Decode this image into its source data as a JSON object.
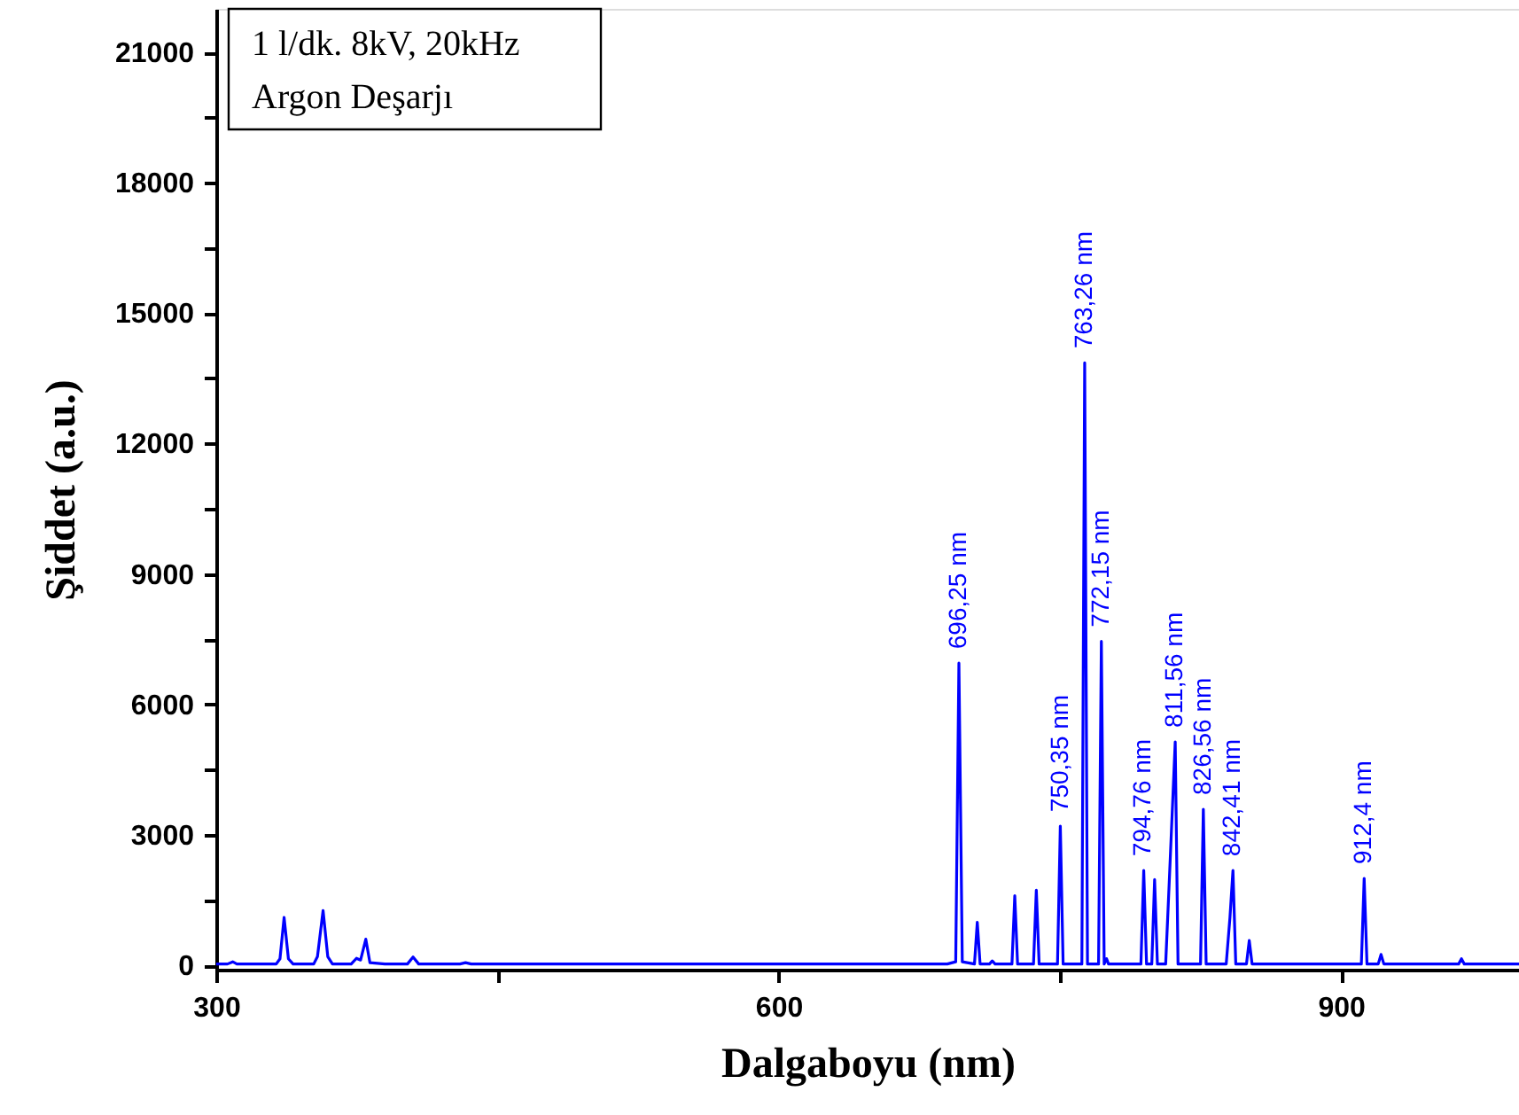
{
  "chart_data": {
    "type": "line",
    "xlabel": "Dalgaboyu (nm)",
    "ylabel": "Şiddet (a.u.)",
    "xlim": [
      300,
      995
    ],
    "ylim": [
      -100,
      22000
    ],
    "xticks": [
      300,
      {
        "value": 450,
        "label": null
      },
      600,
      {
        "value": 750,
        "label": null
      },
      900
    ],
    "yticks": [
      0,
      {
        "value": 1500,
        "label": null
      },
      3000,
      {
        "value": 4500,
        "label": null
      },
      6000,
      {
        "value": 7500,
        "label": null
      },
      9000,
      {
        "value": 10500,
        "label": null
      },
      12000,
      {
        "value": 13500,
        "label": null
      },
      15000,
      {
        "value": 16500,
        "label": null
      },
      18000,
      {
        "value": 19500,
        "label": null
      },
      21000
    ],
    "grid": false,
    "marker": "none",
    "line_style": "solid",
    "series": [
      {
        "color": "#0000ff",
        "x": [
          300,
          306,
          308.8,
          311,
          320,
          332,
          334,
          336.2,
          338.5,
          341,
          352,
          354,
          357,
          359.5,
          362,
          372,
          374.8,
          377,
          379.8,
          382,
          390,
          402,
          405,
          408,
          430,
          433,
          436,
          500,
          600,
          690,
          694.5,
          696.2,
          698,
          704.5,
          706,
          707.5,
          712.5,
          714,
          715.5,
          724.5,
          726,
          727.5,
          736,
          737.5,
          739,
          748.8,
          750.3,
          751.8,
          761.8,
          763.3,
          764.8,
          770.7,
          772.2,
          773.7,
          775,
          776,
          793.3,
          794.8,
          796.3,
          799.1,
          800.6,
          802.1,
          806.5,
          808.5,
          811.6,
          813.1,
          825.1,
          826.6,
          828.1,
          838.8,
          840.8,
          842.4,
          843.9,
          849.6,
          851.1,
          852.6,
          900,
          910.9,
          912.4,
          913.9,
          919.9,
          921.4,
          922.9,
          962.8,
          964.3,
          965.8,
          995
        ],
        "values": [
          30,
          30,
          80,
          30,
          30,
          30,
          150,
          1100,
          150,
          30,
          30,
          200,
          1260,
          200,
          30,
          30,
          160,
          120,
          600,
          60,
          30,
          30,
          190,
          30,
          30,
          60,
          30,
          30,
          30,
          30,
          80,
          6950,
          80,
          30,
          990,
          30,
          30,
          100,
          30,
          30,
          1600,
          30,
          30,
          1730,
          30,
          30,
          3200,
          30,
          30,
          13860,
          30,
          30,
          7450,
          30,
          150,
          30,
          30,
          2180,
          30,
          30,
          1970,
          30,
          30,
          2000,
          5140,
          30,
          30,
          3590,
          30,
          30,
          1100,
          2180,
          30,
          30,
          570,
          30,
          30,
          30,
          2000,
          30,
          30,
          250,
          30,
          30,
          150,
          30,
          30
        ]
      }
    ],
    "annotations": [
      "1 l/dk. 8kV, 20kHz",
      "Argon Deşarjı",
      {
        "text": "696,25 nm",
        "x": 696.25,
        "y": 6950
      },
      {
        "text": "750,35 nm",
        "x": 750.35,
        "y": 3200
      },
      {
        "text": "763,26 nm",
        "x": 763.26,
        "y": 13860
      },
      {
        "text": "772,15 nm",
        "x": 772.15,
        "y": 7450
      },
      {
        "text": "794,76 nm",
        "x": 794.76,
        "y": 2180
      },
      {
        "text": "811,56 nm",
        "x": 811.56,
        "y": 5140
      },
      {
        "text": "826,56 nm",
        "x": 826.56,
        "y": 3590
      },
      {
        "text": "842,41 nm",
        "x": 842.41,
        "y": 2180
      },
      {
        "text": "912,4 nm",
        "x": 912.4,
        "y": 2000
      }
    ]
  }
}
